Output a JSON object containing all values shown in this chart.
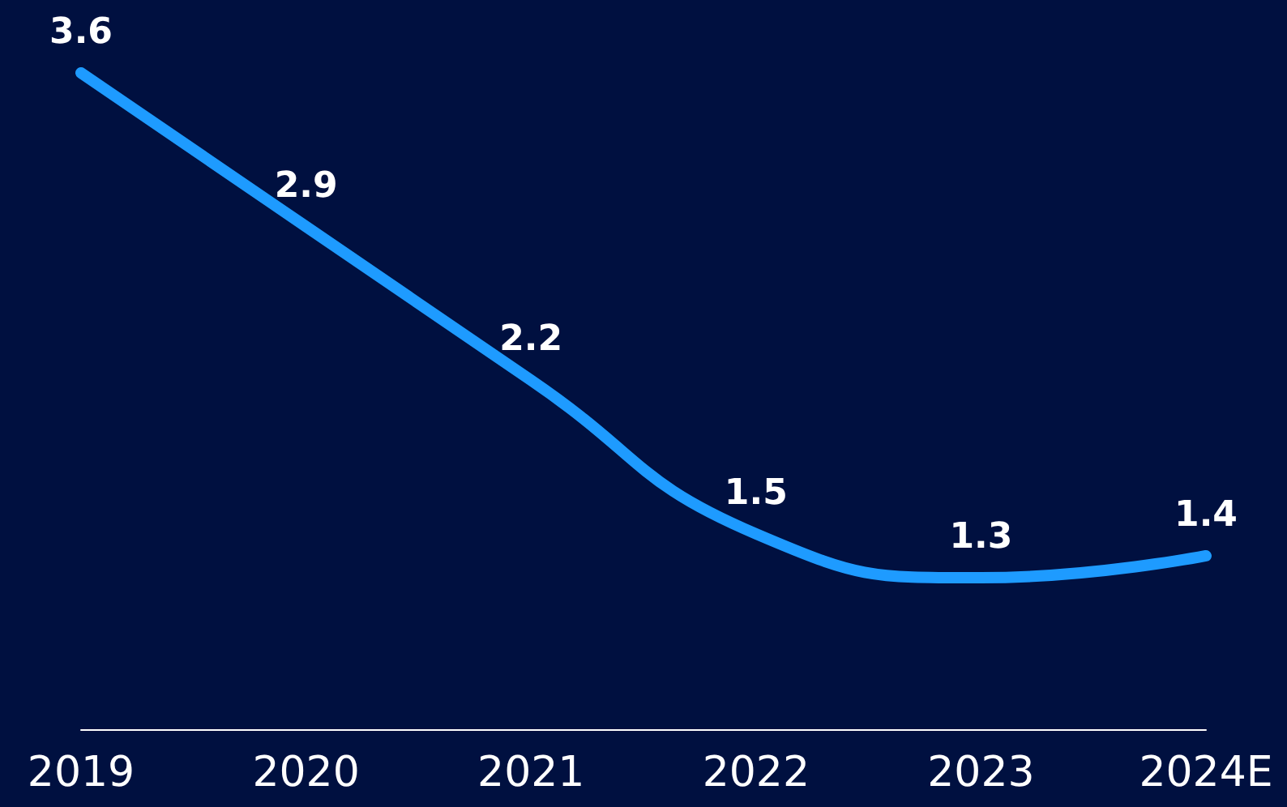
{
  "chart_data": {
    "type": "line",
    "categories": [
      "2019",
      "2020",
      "2021",
      "2022",
      "2023",
      "2024E"
    ],
    "series": [
      {
        "color": "#1e9bff",
        "values": [
          3.6,
          2.9,
          2.2,
          1.5,
          1.3,
          1.4
        ]
      }
    ],
    "data_labels": true,
    "marker": "none",
    "line_style": "solid",
    "grid": false,
    "tick_labels": "x"
  }
}
